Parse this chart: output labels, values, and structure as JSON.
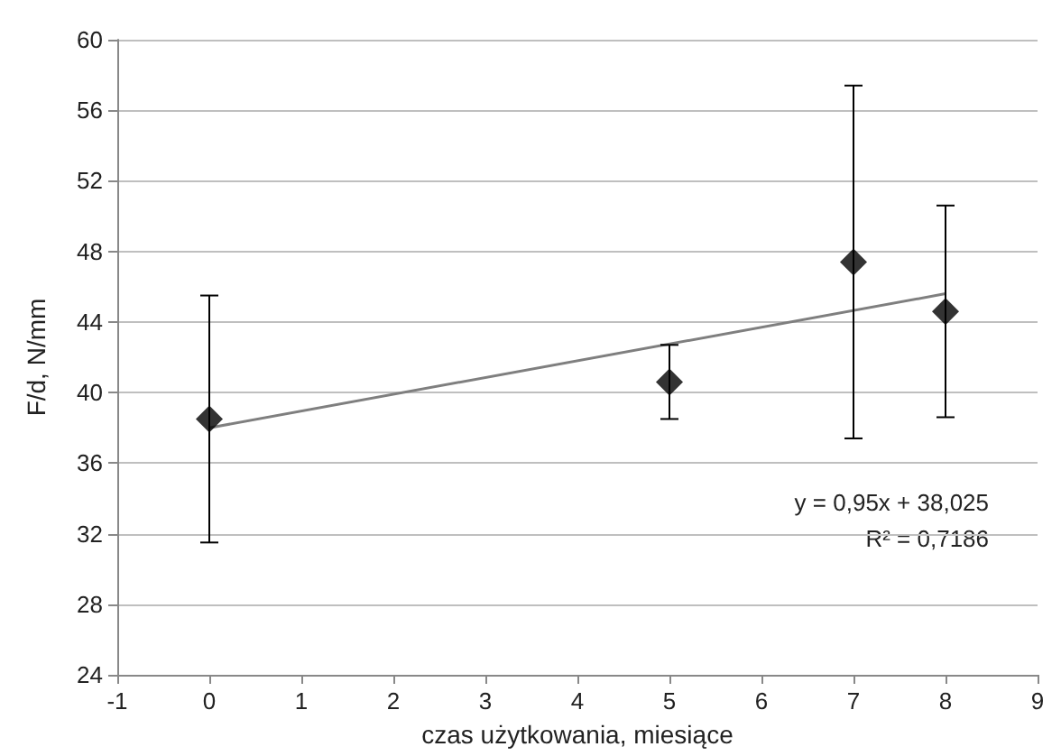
{
  "chart_data": {
    "type": "scatter",
    "xlabel": "czas użytkowania, miesiące",
    "ylabel": "F/d, N/mm",
    "xlim": [
      -1,
      9
    ],
    "xticks": [
      -1,
      0,
      1,
      2,
      3,
      4,
      5,
      6,
      7,
      8,
      9
    ],
    "ylim": [
      24,
      60
    ],
    "yticks": [
      24,
      28,
      32,
      36,
      40,
      44,
      48,
      52,
      56,
      60
    ],
    "grid": "y",
    "marker": "diamond",
    "series": [
      {
        "color": "#000000",
        "x": [
          0,
          5,
          7,
          8
        ],
        "values": [
          38.5,
          40.6,
          47.4,
          44.6
        ],
        "errors": [
          7,
          2.1,
          10,
          6
        ]
      },
      {
        "type": "line",
        "color": "#7f7f7f",
        "marker": "none",
        "line_style": "solid",
        "x": [
          0,
          8
        ],
        "values": [
          38.0,
          45.6
        ]
      }
    ],
    "annotations": [
      "y = 0,95x + 38,025",
      "R² = 0,7186"
    ]
  }
}
